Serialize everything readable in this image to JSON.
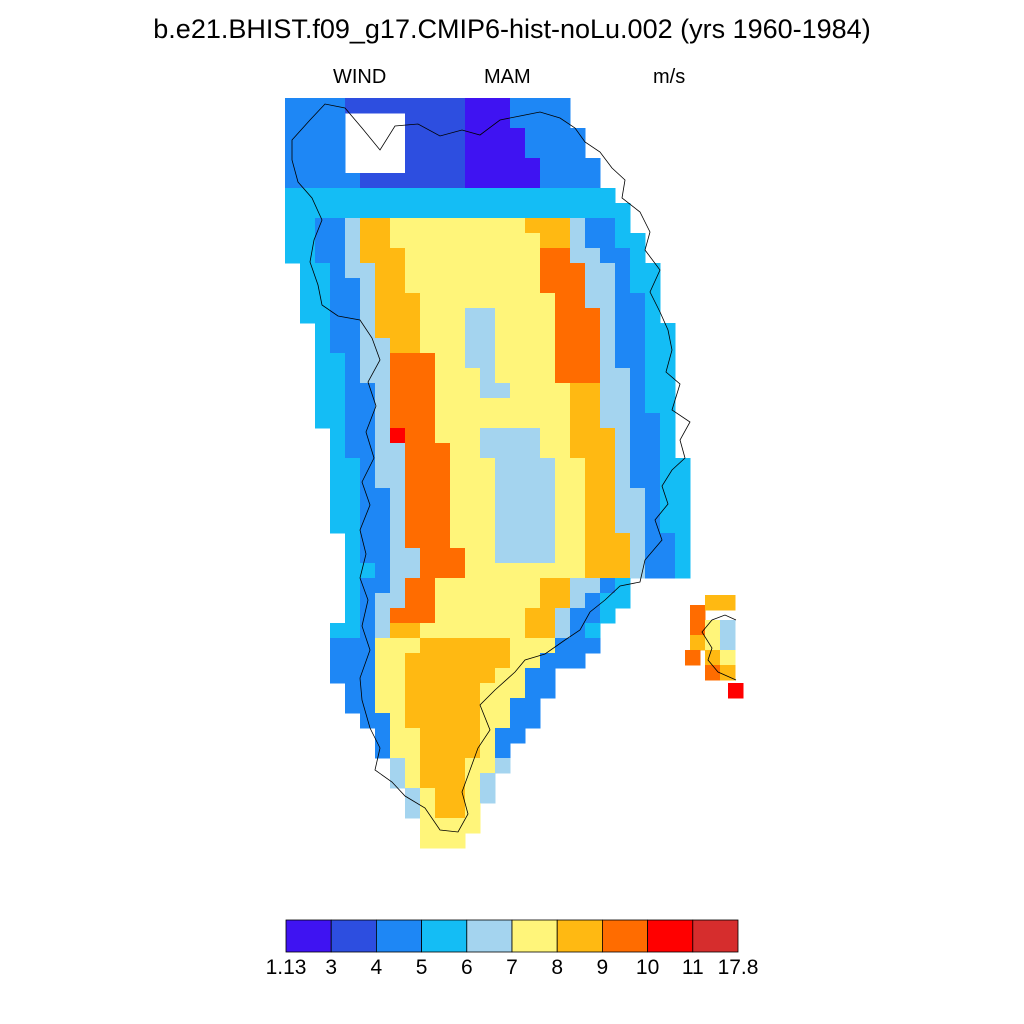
{
  "figure": {
    "title": "b.e21.BHIST.f09_g17.CMIP6-hist-noLu.002 (yrs 1960-1984)",
    "left_string": "WIND",
    "center_string": "MAM",
    "right_string": "m/s"
  },
  "colorbar": {
    "colors": [
      "#3f13f2",
      "#2d4ee0",
      "#1e87f5",
      "#14bdf5",
      "#a4d4ef",
      "#fff57a",
      "#ffb912",
      "#ff6c00",
      "#ff0000",
      "#d62d2d"
    ],
    "labels": [
      "1.13",
      "3",
      "4",
      "5",
      "6",
      "7",
      "8",
      "9",
      "10",
      "11",
      "17.8"
    ]
  },
  "chart_data": {
    "type": "heatmap",
    "variable": "WIND",
    "season": "MAM",
    "units": "m/s",
    "region": "Greenland",
    "levels": [
      1.13,
      3,
      4,
      5,
      6,
      7,
      8,
      9,
      10,
      11,
      17.8
    ],
    "field_summary": {
      "interior_ice_sheet": "7-8",
      "interior_low_spots": "6-7",
      "western_slope_jet": "9-10",
      "western_slope_max": "10-11",
      "eastern_slope": "9-10",
      "coastal_margins": "3-6",
      "northern_coast": "1.13-4",
      "southern_tip": "4-8",
      "iceland_corner_max": "10-11"
    }
  }
}
